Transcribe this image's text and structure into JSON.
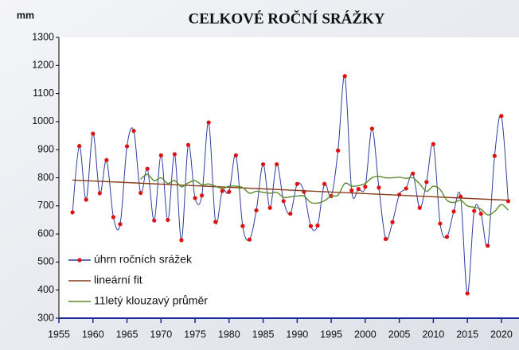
{
  "chart_data": {
    "type": "line",
    "title": "CELKOVÉ ROČNÍ SRÁŽKY",
    "ylabel": "mm",
    "xlim": [
      1955,
      2022
    ],
    "ylim": [
      300,
      1300
    ],
    "xticks": [
      1955,
      1960,
      1965,
      1970,
      1975,
      1980,
      1985,
      1990,
      1995,
      2000,
      2005,
      2010,
      2015,
      2020
    ],
    "yticks": [
      300,
      400,
      500,
      600,
      700,
      800,
      900,
      1000,
      1100,
      1200,
      1300
    ],
    "grid": false,
    "legend": "lower left",
    "series": [
      {
        "name": "úhrn ročních srážek",
        "color": "#2f3f9f",
        "marker_color": "#e01010",
        "x": [
          1957,
          1958,
          1959,
          1960,
          1961,
          1962,
          1963,
          1964,
          1965,
          1966,
          1967,
          1968,
          1969,
          1970,
          1971,
          1972,
          1973,
          1974,
          1975,
          1976,
          1977,
          1978,
          1979,
          1980,
          1981,
          1982,
          1983,
          1984,
          1985,
          1986,
          1987,
          1988,
          1989,
          1990,
          1991,
          1992,
          1993,
          1994,
          1995,
          1996,
          1997,
          1998,
          1999,
          2000,
          2001,
          2002,
          2003,
          2004,
          2005,
          2006,
          2007,
          2008,
          2009,
          2010,
          2011,
          2012,
          2013,
          2014,
          2015,
          2016,
          2017,
          2018,
          2019,
          2020,
          2021
        ],
        "values": [
          677,
          913,
          722,
          957,
          745,
          863,
          660,
          635,
          912,
          967,
          746,
          832,
          648,
          880,
          650,
          884,
          578,
          917,
          728,
          737,
          997,
          643,
          753,
          750,
          880,
          628,
          580,
          684,
          848,
          693,
          848,
          717,
          672,
          778,
          750,
          628,
          630,
          778,
          735,
          897,
          1162,
          755,
          760,
          768,
          975,
          765,
          582,
          642,
          740,
          762,
          815,
          693,
          785,
          920,
          637,
          590,
          680,
          733,
          388,
          682,
          672,
          558,
          878,
          1020,
          717
        ]
      },
      {
        "name": "lineární fit",
        "color": "#8b3a1a",
        "x": [
          1957,
          2021
        ],
        "values": [
          792,
          720
        ]
      },
      {
        "name": "11letý klouzavý průměr",
        "color": "#5a8a2a",
        "x": [
          1967,
          1968,
          1969,
          1970,
          1971,
          1972,
          1973,
          1974,
          1975,
          1976,
          1977,
          1978,
          1979,
          1980,
          1981,
          1982,
          1983,
          1984,
          1985,
          1986,
          1987,
          1988,
          1989,
          1990,
          1991,
          1992,
          1993,
          1994,
          1995,
          1996,
          1997,
          1998,
          1999,
          2000,
          2001,
          2002,
          2003,
          2004,
          2005,
          2006,
          2007,
          2008,
          2009,
          2010,
          2011,
          2012,
          2013,
          2014,
          2015,
          2016,
          2017,
          2018,
          2019,
          2020,
          2021
        ],
        "values": [
          795,
          812,
          790,
          800,
          780,
          790,
          768,
          782,
          790,
          775,
          778,
          770,
          762,
          770,
          770,
          765,
          745,
          752,
          748,
          745,
          748,
          730,
          732,
          735,
          735,
          712,
          710,
          718,
          735,
          738,
          780,
          770,
          772,
          780,
          800,
          805,
          800,
          800,
          802,
          798,
          800,
          778,
          752,
          770,
          758,
          720,
          712,
          720,
          700,
          695,
          688,
          668,
          680,
          705,
          685
        ]
      }
    ]
  }
}
